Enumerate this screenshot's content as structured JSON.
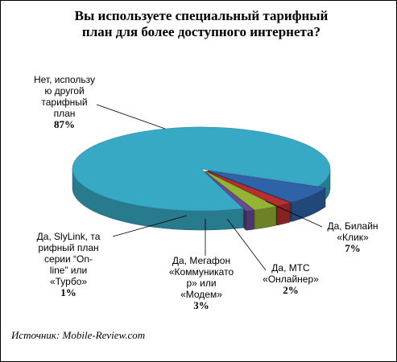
{
  "chart_data": {
    "type": "pie",
    "title_lines": [
      "Вы используете специальный тарифный",
      "план для более доступного интернета?"
    ],
    "slices": [
      {
        "label_lines": [
          "Нет, использу",
          "ю другой",
          "тарифный",
          "план"
        ],
        "pct_text": "87%",
        "value": 87,
        "color": "#38A9C4"
      },
      {
        "label_lines": [
          "Да, Билайн",
          "«Клик»"
        ],
        "pct_text": "7%",
        "value": 7,
        "color": "#2F63A8"
      },
      {
        "label_lines": [
          "Да, МТС",
          "«Онлайнер»"
        ],
        "pct_text": "2%",
        "value": 2,
        "color": "#B8302E"
      },
      {
        "label_lines": [
          "Да, Мегафон",
          "«Коммуникато",
          "р» или",
          "«Модем»"
        ],
        "pct_text": "3%",
        "value": 3,
        "color": "#94B534"
      },
      {
        "label_lines": [
          "Да, SlyLink, та",
          "рифный план",
          "серии “On-",
          "line” или",
          "«Турбо»"
        ],
        "pct_text": "1%",
        "value": 1,
        "color": "#6A4C96"
      }
    ]
  },
  "source": "Источник: Mobile-Review.com"
}
